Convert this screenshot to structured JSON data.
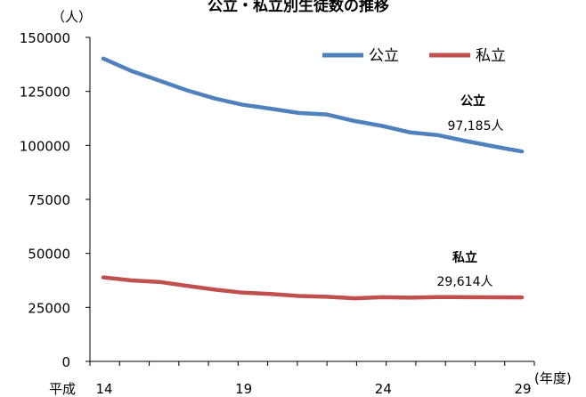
{
  "chart_data": {
    "type": "line",
    "title": "公立・私立別生徒数の推移",
    "y_unit": "（人）",
    "x_unit": "(年度)",
    "x_era": "平成",
    "x": [
      14,
      15,
      16,
      17,
      18,
      19,
      20,
      21,
      22,
      23,
      24,
      25,
      26,
      27,
      28,
      29
    ],
    "x_tick_labels": [
      "14",
      "19",
      "24",
      "29"
    ],
    "y_tick_labels": [
      "0",
      "25000",
      "50000",
      "75000",
      "100000",
      "125000",
      "150000"
    ],
    "ylim": [
      0,
      150000
    ],
    "grid": false,
    "legend_position": "top-right",
    "series": [
      {
        "name": "公立",
        "color": "#4f81bd",
        "values": [
          140200,
          134500,
          130000,
          125500,
          121700,
          118800,
          117000,
          115000,
          114300,
          111300,
          109000,
          106000,
          104700,
          102000,
          99500,
          97185
        ],
        "end_label_name": "公立",
        "end_label_value": "97,185人"
      },
      {
        "name": "私立",
        "color": "#c0504d",
        "values": [
          38900,
          37500,
          36800,
          35000,
          33200,
          31800,
          31200,
          30300,
          29900,
          29200,
          29700,
          29500,
          29800,
          29700,
          29650,
          29614
        ],
        "end_label_name": "私立",
        "end_label_value": "29,614人"
      }
    ]
  }
}
